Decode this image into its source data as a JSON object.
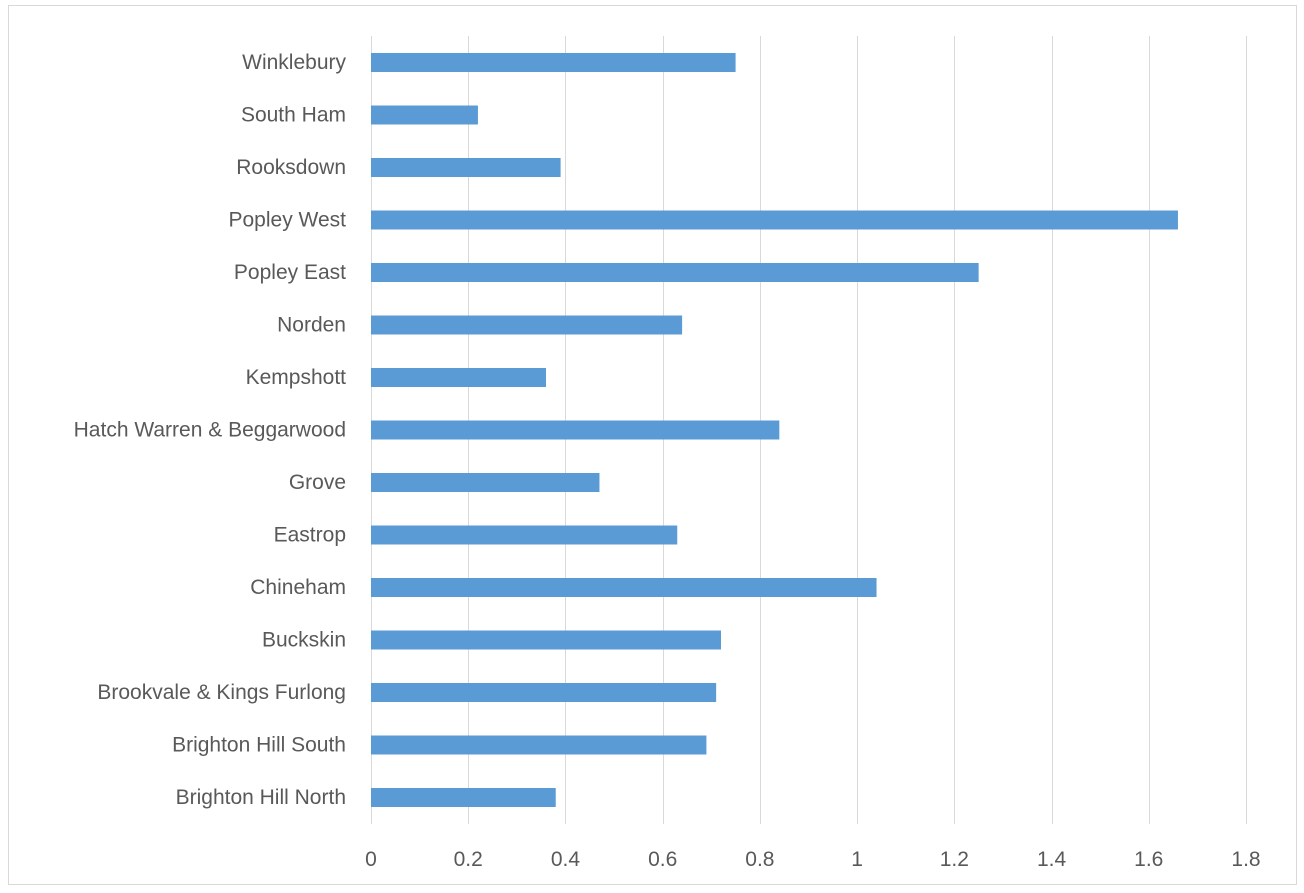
{
  "chart_data": {
    "type": "bar",
    "orientation": "horizontal",
    "title": "",
    "xlabel": "",
    "ylabel": "",
    "categories": [
      "Winklebury",
      "South Ham",
      "Rooksdown",
      "Popley West",
      "Popley East",
      "Norden",
      "Kempshott",
      "Hatch Warren & Beggarwood",
      "Grove",
      "Eastrop",
      "Chineham",
      "Buckskin",
      "Brookvale & Kings Furlong",
      "Brighton Hill South",
      "Brighton Hill North"
    ],
    "values": [
      0.75,
      0.22,
      0.39,
      1.66,
      1.25,
      0.64,
      0.36,
      0.84,
      0.47,
      0.63,
      1.04,
      0.72,
      0.71,
      0.69,
      0.38
    ],
    "xlim": [
      0,
      1.8
    ],
    "xticks": [
      "0",
      "0.2",
      "0.4",
      "0.6",
      "0.8",
      "1",
      "1.2",
      "1.4",
      "1.6",
      "1.8"
    ],
    "xtick_values": [
      0,
      0.2,
      0.4,
      0.6,
      0.8,
      1.0,
      1.2,
      1.4,
      1.6,
      1.8
    ],
    "grid": "vertical",
    "legend": "none",
    "bar_color": "#5b9bd5"
  }
}
